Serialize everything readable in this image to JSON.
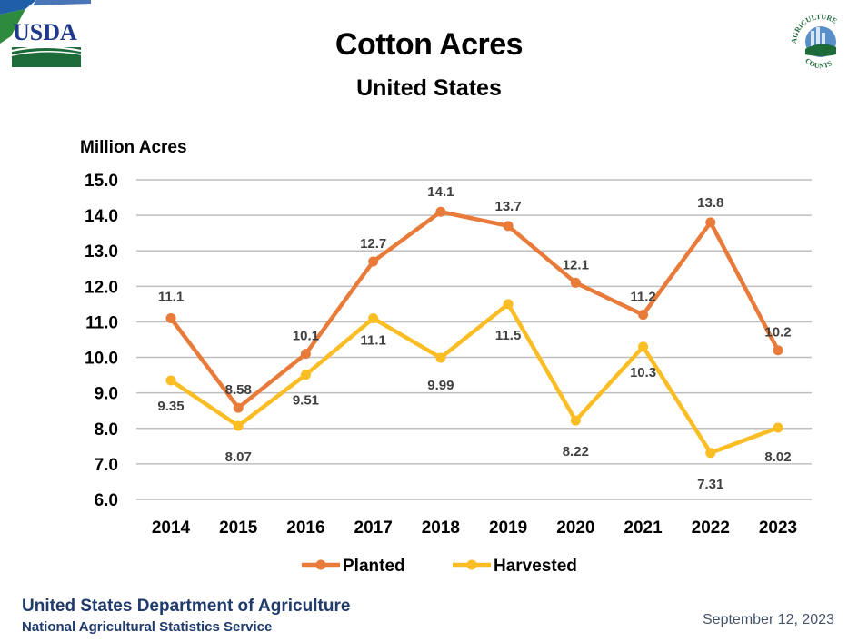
{
  "header": {
    "title": "Cotton Acres",
    "subtitle": "United States",
    "logo_left": "usda-logo",
    "logo_left_text": "USDA",
    "logo_right": "agriculture-counts-logo",
    "logo_right_text_top": "AGRICULTURE",
    "logo_right_text_bottom": "COUNTS"
  },
  "footer": {
    "organization": "United States Department of Agriculture",
    "agency": "National Agricultural Statistics Service",
    "date": "September 12, 2023"
  },
  "colors": {
    "planted": "#E97B3A",
    "harvested": "#FBBD24",
    "gridline": "#BFBFBF",
    "footer_text": "#1F3A6B"
  },
  "chart_data": {
    "type": "line",
    "title": "Cotton Acres",
    "subtitle": "United States",
    "xlabel": "",
    "ylabel": "Million Acres",
    "categories": [
      "2014",
      "2015",
      "2016",
      "2017",
      "2018",
      "2019",
      "2020",
      "2021",
      "2022",
      "2023"
    ],
    "ylim": [
      6.0,
      15.0
    ],
    "yticks": [
      "6.0",
      "7.0",
      "8.0",
      "9.0",
      "10.0",
      "11.0",
      "12.0",
      "13.0",
      "14.0",
      "15.0"
    ],
    "grid": true,
    "legend_position": "bottom",
    "series": [
      {
        "name": "Planted",
        "color": "#E97B3A",
        "values": [
          11.1,
          8.58,
          10.1,
          12.7,
          14.1,
          13.7,
          12.1,
          11.2,
          13.8,
          10.2
        ],
        "labels": [
          "11.1",
          "8.58",
          "10.1",
          "12.7",
          "14.1",
          "13.7",
          "12.1",
          "11.2",
          "13.8",
          "10.2"
        ]
      },
      {
        "name": "Harvested",
        "color": "#FBBD24",
        "values": [
          9.35,
          8.07,
          9.51,
          11.1,
          9.99,
          11.5,
          8.22,
          10.3,
          7.31,
          8.02
        ],
        "labels": [
          "9.35",
          "8.07",
          "9.51",
          "11.1",
          "9.99",
          "11.5",
          "8.22",
          "10.3",
          "7.31",
          "8.02"
        ]
      }
    ]
  }
}
